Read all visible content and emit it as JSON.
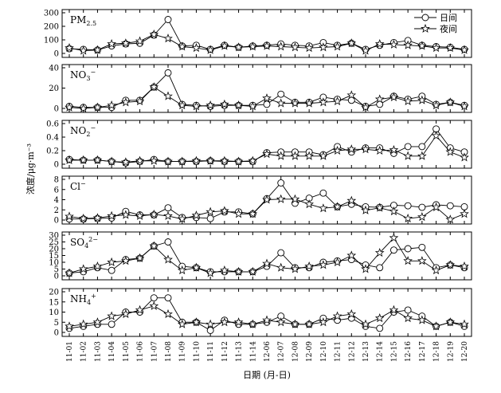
{
  "chart_data": {
    "type": "line",
    "ylabel": "浓度/μg·m⁻³",
    "xlabel": "日期 (月-日)",
    "categories": [
      "11-01",
      "11-02",
      "11-03",
      "11-04",
      "11-05",
      "11-06",
      "11-07",
      "11-08",
      "11-09",
      "11-10",
      "11-11",
      "11-12",
      "11-13",
      "11-14",
      "12-06",
      "12-07",
      "12-08",
      "12-09",
      "12-10",
      "12-11",
      "12-12",
      "12-13",
      "12-14",
      "12-15",
      "12-16",
      "12-17",
      "12-18",
      "12-19",
      "12-20"
    ],
    "legend": [
      {
        "name": "日间",
        "marker": "circle"
      },
      {
        "name": "夜间",
        "marker": "star"
      }
    ],
    "legend_position": "top-right",
    "panels": [
      {
        "label": "PM2.5",
        "label_base": "PM",
        "label_sub": "2.5",
        "label_sup": "",
        "ylim": [
          0,
          300
        ],
        "yticks": [
          0,
          100,
          200,
          300
        ],
        "series": [
          {
            "name": "日间",
            "values": [
              35,
              30,
              25,
              55,
              70,
              75,
              135,
              250,
              55,
              60,
              30,
              60,
              45,
              55,
              60,
              70,
              60,
              55,
              80,
              60,
              75,
              30,
              60,
              80,
              95,
              60,
              50,
              45,
              30
            ]
          },
          {
            "name": "夜间",
            "values": [
              40,
              20,
              25,
              70,
              75,
              90,
              140,
              110,
              50,
              40,
              25,
              55,
              45,
              50,
              55,
              50,
              45,
              40,
              45,
              50,
              75,
              20,
              70,
              65,
              60,
              55,
              40,
              40,
              25
            ]
          }
        ]
      },
      {
        "label": "NO3−",
        "label_base": "NO",
        "label_sub": "3",
        "label_sup": "−",
        "ylim": [
          0,
          40
        ],
        "yticks": [
          0,
          20,
          40
        ],
        "series": [
          {
            "name": "日间",
            "values": [
              2,
              1,
              1,
              1,
              8,
              8,
              21,
              35,
              4,
              3,
              2,
              3,
              3,
              3,
              4,
              14,
              6,
              6,
              11,
              9,
              8,
              2,
              4,
              12,
              9,
              12,
              4,
              6,
              3
            ]
          },
          {
            "name": "夜间",
            "values": [
              1,
              0,
              1,
              3,
              6,
              7,
              21,
              12,
              3,
              2,
              3,
              4,
              3,
              2,
              10,
              5,
              5,
              5,
              6,
              7,
              13,
              1,
              9,
              11,
              7,
              8,
              3,
              6,
              2
            ]
          }
        ]
      },
      {
        "label": "NO2−",
        "label_base": "NO",
        "label_sub": "2",
        "label_sup": "−",
        "ylim": [
          0,
          0.6
        ],
        "yticks": [
          0,
          0.2,
          0.4,
          0.6
        ],
        "series": [
          {
            "name": "日间",
            "values": [
              0.07,
              0.06,
              0.06,
              0.04,
              0.02,
              0.04,
              0.07,
              0.04,
              0.04,
              0.04,
              0.05,
              0.04,
              0.04,
              0.04,
              0.17,
              0.18,
              0.18,
              0.18,
              0.14,
              0.26,
              0.18,
              0.24,
              0.24,
              0.16,
              0.26,
              0.26,
              0.52,
              0.24,
              0.18
            ]
          },
          {
            "name": "夜间",
            "values": [
              0.06,
              0.06,
              0.06,
              0.04,
              0.03,
              0.05,
              0.05,
              0.04,
              0.04,
              0.05,
              0.05,
              0.05,
              0.04,
              0.05,
              0.15,
              0.12,
              0.12,
              0.12,
              0.12,
              0.2,
              0.22,
              0.22,
              0.2,
              0.21,
              0.12,
              0.12,
              0.42,
              0.18,
              0.1
            ]
          }
        ]
      },
      {
        "label": "Cl−",
        "label_base": "Cl",
        "label_sub": "",
        "label_sup": "−",
        "ylim": [
          0,
          8
        ],
        "yticks": [
          0,
          2,
          4,
          6,
          8
        ],
        "series": [
          {
            "name": "日间",
            "values": [
              0.2,
              0.2,
              0.3,
              0.4,
              1.7,
              1.0,
              1.0,
              2.4,
              0.5,
              0.5,
              0.3,
              1.6,
              1.6,
              1.2,
              4.2,
              7.3,
              3.3,
              4.3,
              5.3,
              2.6,
              3.1,
              2.6,
              2.5,
              2.9,
              2.8,
              2.5,
              3.0,
              2.8,
              2.6
            ]
          },
          {
            "name": "夜间",
            "values": [
              0.7,
              0.3,
              0.4,
              0.8,
              1.0,
              0.8,
              1.1,
              0.8,
              0.2,
              0.9,
              1.6,
              1.8,
              1.2,
              1.2,
              4.0,
              4.1,
              4.1,
              3.1,
              2.3,
              2.6,
              3.8,
              1.9,
              2.4,
              1.7,
              0.3,
              0.6,
              2.5,
              0.1,
              1.2
            ]
          }
        ]
      },
      {
        "label": "SO42−",
        "label_base": "SO",
        "label_sub": "4",
        "label_sup": "2−",
        "ylim": [
          0,
          30
        ],
        "yticks": [
          0,
          5,
          10,
          15,
          20,
          25,
          30
        ],
        "series": [
          {
            "name": "日间",
            "values": [
              2,
              3,
              6,
              4,
              12,
              13,
              22,
              25,
              7,
              6,
              3,
              3,
              3,
              3,
              7,
              17,
              6,
              6,
              10,
              11,
              12,
              8,
              6,
              19,
              20,
              21,
              6,
              8,
              6
            ]
          },
          {
            "name": "夜间",
            "values": [
              2,
              5,
              7,
              10,
              11,
              13,
              22,
              12,
              4,
              6,
              2,
              4,
              3,
              3,
              9,
              6,
              5,
              7,
              8,
              10,
              15,
              5,
              17,
              28,
              11,
              11,
              4,
              8,
              7
            ]
          }
        ]
      },
      {
        "label": "NH4+",
        "label_base": "NH",
        "label_sub": "4",
        "label_sup": "+",
        "ylim": [
          0,
          20
        ],
        "yticks": [
          0,
          5,
          10,
          15,
          20
        ],
        "series": [
          {
            "name": "日间",
            "values": [
              2,
              3,
              4,
              4,
              10,
              10,
              17,
              17,
              5,
              5,
              1,
              6,
              4,
              4,
              5,
              8,
              4,
              4,
              7,
              6,
              7,
              3,
              2,
              10,
              11,
              8,
              3,
              5,
              3
            ]
          },
          {
            "name": "夜间",
            "values": [
              3,
              4,
              5,
              8,
              9,
              11,
              13,
              9,
              4,
              5,
              4,
              5,
              5,
              4,
              6,
              5,
              4,
              4,
              5,
              8,
              9,
              4,
              7,
              11,
              7,
              6,
              3,
              5,
              4
            ]
          }
        ]
      }
    ]
  }
}
